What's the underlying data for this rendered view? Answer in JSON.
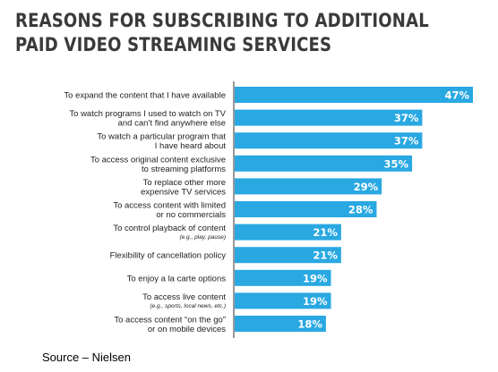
{
  "header": {
    "title_line1": "REASONS FOR SUBSCRIBING TO ADDITIONAL",
    "title_line2": "PAID VIDEO STREAMING SERVICES"
  },
  "footer": {
    "source": "Source – Nielsen"
  },
  "colors": {
    "bar": "#29a8e2",
    "label": "#222222",
    "value": "#ffffff",
    "axis": "#555555"
  },
  "chart_data": {
    "type": "bar",
    "orientation": "horizontal",
    "title": "REASONS FOR SUBSCRIBING TO ADDITIONAL PAID VIDEO STREAMING SERVICES",
    "xlabel": "",
    "ylabel": "",
    "xlim": [
      0,
      47
    ],
    "grid": false,
    "categories": [
      {
        "lines": [
          "To expand the content that I have available"
        ],
        "note": ""
      },
      {
        "lines": [
          "To watch programs I used to watch on TV",
          "and can’t find anywhere else"
        ],
        "note": ""
      },
      {
        "lines": [
          "To watch a particular program that",
          "I have heard about"
        ],
        "note": ""
      },
      {
        "lines": [
          "To access original content exclusive",
          "to streaming platforms"
        ],
        "note": ""
      },
      {
        "lines": [
          "To replace other more",
          "expensive TV services"
        ],
        "note": ""
      },
      {
        "lines": [
          "To access content with limited",
          "or no commercials"
        ],
        "note": ""
      },
      {
        "lines": [
          "To control playback of content"
        ],
        "note": "(e.g., play, pause)"
      },
      {
        "lines": [
          "Flexibility of cancellation policy"
        ],
        "note": ""
      },
      {
        "lines": [
          "To enjoy a la carte options"
        ],
        "note": ""
      },
      {
        "lines": [
          "To access live content"
        ],
        "note": "(e.g., sports, local news, etc.)"
      },
      {
        "lines": [
          "To access content “on the go”",
          "or on mobile devices"
        ],
        "note": ""
      }
    ],
    "values": [
      47,
      37,
      37,
      35,
      29,
      28,
      21,
      21,
      19,
      19,
      18
    ],
    "value_labels": [
      "47%",
      "37%",
      "37%",
      "35%",
      "29%",
      "28%",
      "21%",
      "21%",
      "19%",
      "19%",
      "18%"
    ]
  }
}
